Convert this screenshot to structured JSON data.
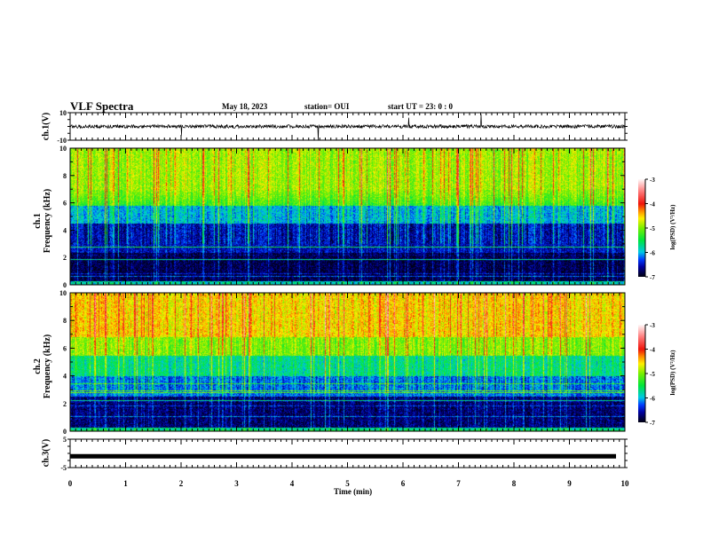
{
  "header": {
    "title": "VLF Spectra",
    "date": "May 18, 2023",
    "station": "station= OUI",
    "start": "start  UT  =   23: 0  : 0"
  },
  "chart_data": {
    "type": "heatmap",
    "xlabel": "Time  (min)",
    "xlim": [
      0,
      10
    ],
    "xticks": [
      "0",
      "1",
      "2",
      "3",
      "4",
      "5",
      "6",
      "7",
      "8",
      "9",
      "10"
    ],
    "panels": [
      {
        "name": "ch.1 waveform",
        "ylabel": "ch.1(V)",
        "ylim": [
          -10,
          10
        ],
        "yticks": [
          "10",
          "-10"
        ]
      },
      {
        "name": "ch.1 spectrogram",
        "ylabel_line1": "ch.1",
        "ylabel_line2": "Frequency (kHz)",
        "ylim": [
          0,
          10
        ],
        "yticks": [
          "0",
          "2",
          "4",
          "6",
          "8",
          "10"
        ],
        "colorbar": {
          "label": "log(PSD) (V²/Hz)",
          "range": [
            -7,
            -3
          ],
          "ticks": [
            "-3",
            "-4",
            "-5",
            "-6",
            "-7"
          ]
        }
      },
      {
        "name": "ch.2 spectrogram",
        "ylabel_line1": "ch.2",
        "ylabel_line2": "Frequency (kHz)",
        "ylim": [
          0,
          10
        ],
        "yticks": [
          "0",
          "2",
          "4",
          "6",
          "8",
          "10"
        ],
        "colorbar": {
          "label": "log(PSD) (V²/Hz)",
          "range": [
            -7,
            -3
          ],
          "ticks": [
            "-3",
            "-4",
            "-5",
            "-6",
            "-7"
          ]
        }
      },
      {
        "name": "ch.3 waveform",
        "ylabel": "ch.3(V)",
        "ylim": [
          -5,
          5
        ],
        "yticks": [
          "5",
          "-5"
        ],
        "level": -1
      }
    ]
  }
}
